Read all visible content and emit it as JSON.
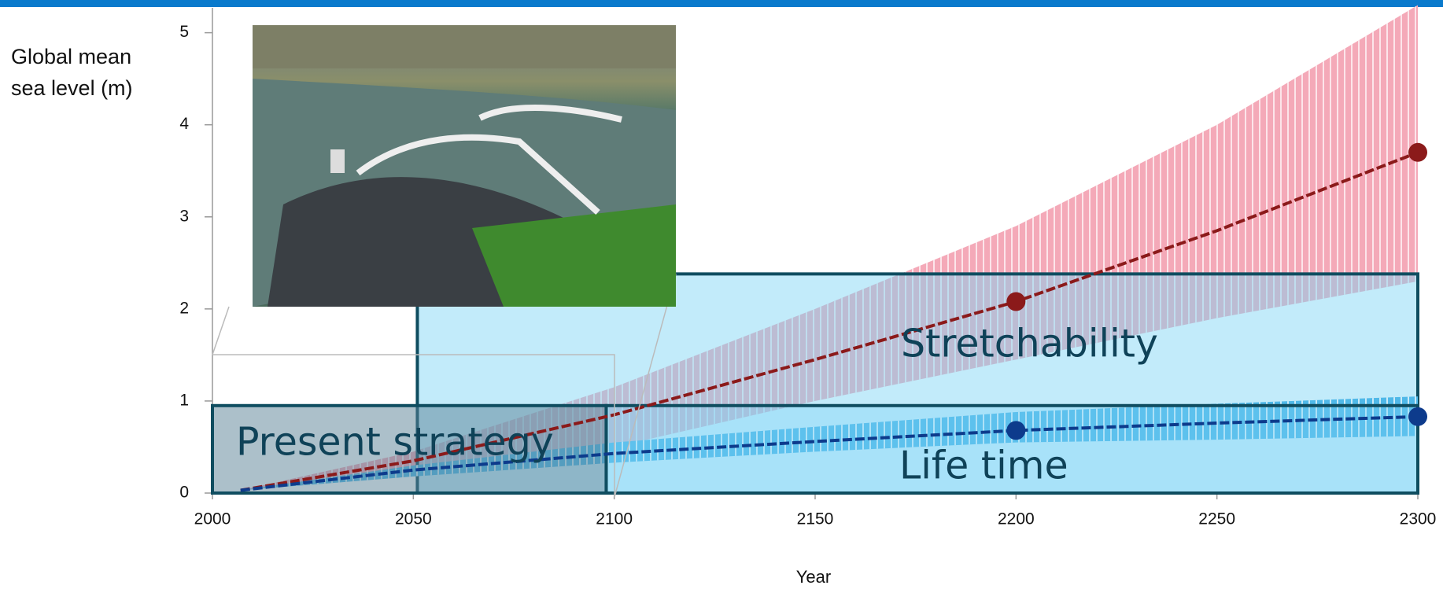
{
  "chart_data": {
    "type": "line",
    "ylabel": "Global mean sea level (m)",
    "xlabel": "Year",
    "x": [
      2007,
      2050,
      2100,
      2150,
      2200,
      2250,
      2300
    ],
    "series": [
      {
        "color": "#8b1a1a",
        "band_color": "#f4a9b8",
        "values": [
          0.03,
          0.35,
          0.85,
          1.45,
          2.08,
          2.85,
          3.7
        ],
        "lower": [
          0.03,
          0.25,
          0.5,
          1.0,
          1.45,
          1.9,
          2.3
        ],
        "upper": [
          0.03,
          0.45,
          1.15,
          2.0,
          2.9,
          4.0,
          5.3
        ]
      },
      {
        "color": "#0d3b8c",
        "band_color": "#4fb8e8",
        "values": [
          0.03,
          0.25,
          0.43,
          0.56,
          0.68,
          0.76,
          0.83
        ],
        "lower": [
          0.03,
          0.18,
          0.33,
          0.45,
          0.55,
          0.58,
          0.62
        ],
        "upper": [
          0.03,
          0.3,
          0.55,
          0.72,
          0.88,
          0.97,
          1.05
        ]
      }
    ],
    "regions": [
      {
        "label": "Stretchability",
        "x": [
          2051,
          2300
        ],
        "y": [
          0,
          2.38
        ],
        "fill": "rgba(120,210,245,0.45)"
      },
      {
        "label": "Life time",
        "x": [
          2098,
          2300
        ],
        "y": [
          0,
          0.95
        ],
        "fill": "rgba(120,210,245,0.35)"
      },
      {
        "label": "Present strategy",
        "x": [
          2000,
          2098
        ],
        "y": [
          0,
          0.95
        ],
        "fill": "rgba(90,130,150,0.5)"
      }
    ],
    "xlim": [
      2000,
      2300
    ],
    "xticks": [
      2000,
      2050,
      2100,
      2150,
      2200,
      2250,
      2300
    ],
    "ylim": [
      0,
      5.27
    ],
    "yticks": [
      0,
      1,
      2,
      3,
      4,
      5
    ]
  }
}
